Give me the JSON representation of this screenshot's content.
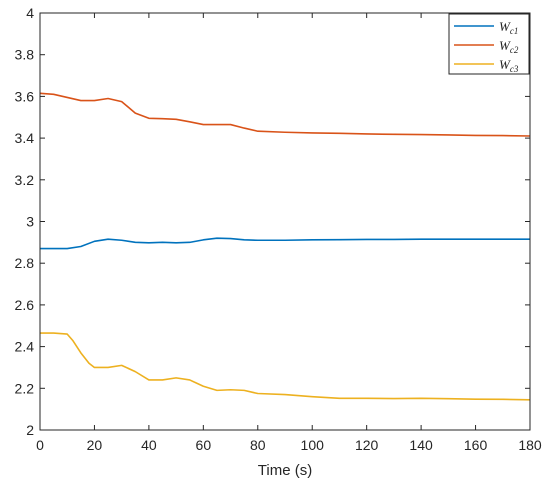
{
  "chart_data": {
    "type": "line",
    "xlabel": "Time (s)",
    "ylabel": "",
    "xlim": [
      0,
      180
    ],
    "ylim": [
      2,
      4
    ],
    "xticks": [
      0,
      20,
      40,
      60,
      80,
      100,
      120,
      140,
      160,
      180
    ],
    "yticks": [
      2,
      2.2,
      2.4,
      2.6,
      2.8,
      3,
      3.2,
      3.4,
      3.6,
      3.8,
      4
    ],
    "ytick_labels": [
      "2",
      "2.2",
      "2.4",
      "2.6",
      "2.8",
      "3",
      "3.2",
      "3.4",
      "3.6",
      "3.8",
      "4"
    ],
    "grid": false,
    "legend_position": "top-right",
    "series": [
      {
        "name": "W",
        "subscript": "c1",
        "color": "#0072BD",
        "x": [
          0,
          5,
          10,
          15,
          20,
          25,
          30,
          35,
          40,
          45,
          50,
          55,
          60,
          65,
          70,
          75,
          80,
          90,
          100,
          110,
          120,
          130,
          140,
          150,
          160,
          170,
          180
        ],
        "y": [
          2.87,
          2.87,
          2.87,
          2.88,
          2.905,
          2.915,
          2.91,
          2.9,
          2.898,
          2.9,
          2.898,
          2.9,
          2.912,
          2.92,
          2.918,
          2.912,
          2.91,
          2.91,
          2.912,
          2.913,
          2.914,
          2.914,
          2.915,
          2.915,
          2.915,
          2.915,
          2.915
        ]
      },
      {
        "name": "W",
        "subscript": "c2",
        "color": "#D95319",
        "x": [
          0,
          5,
          10,
          15,
          20,
          25,
          30,
          35,
          40,
          45,
          50,
          55,
          60,
          65,
          70,
          75,
          80,
          90,
          100,
          110,
          120,
          130,
          140,
          150,
          160,
          170,
          180
        ],
        "y": [
          3.615,
          3.61,
          3.595,
          3.58,
          3.58,
          3.59,
          3.575,
          3.52,
          3.495,
          3.493,
          3.49,
          3.478,
          3.465,
          3.465,
          3.465,
          3.448,
          3.433,
          3.428,
          3.425,
          3.423,
          3.42,
          3.418,
          3.417,
          3.415,
          3.413,
          3.412,
          3.41
        ]
      },
      {
        "name": "W",
        "subscript": "c3",
        "color": "#EDB120",
        "x": [
          0,
          5,
          10,
          12,
          15,
          18,
          20,
          25,
          30,
          35,
          40,
          45,
          50,
          55,
          60,
          65,
          70,
          75,
          80,
          90,
          100,
          110,
          120,
          130,
          140,
          150,
          160,
          170,
          180
        ],
        "y": [
          2.465,
          2.465,
          2.46,
          2.43,
          2.37,
          2.32,
          2.3,
          2.3,
          2.31,
          2.28,
          2.24,
          2.24,
          2.25,
          2.24,
          2.21,
          2.19,
          2.193,
          2.19,
          2.175,
          2.17,
          2.16,
          2.152,
          2.152,
          2.151,
          2.152,
          2.15,
          2.148,
          2.147,
          2.145
        ]
      }
    ]
  }
}
